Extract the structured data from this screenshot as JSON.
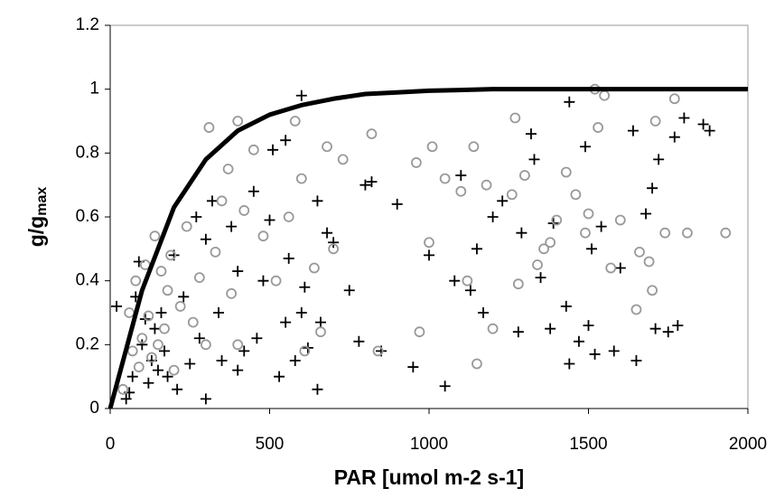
{
  "chart_data": {
    "type": "scatter",
    "xlabel": "PAR [umol m-2 s-1]",
    "ylabel": "g/g",
    "ylabel_sub": "max",
    "xlim": [
      0,
      2000
    ],
    "xticks": [
      0,
      500,
      1000,
      1500,
      2000
    ],
    "ylim": [
      0,
      1.2
    ],
    "yticks": [
      0,
      0.2,
      0.4,
      0.6,
      0.8,
      1,
      1.2
    ],
    "series": [
      {
        "marker": "cross",
        "color": "#000000",
        "x": [
          20,
          50,
          60,
          70,
          80,
          90,
          100,
          110,
          120,
          130,
          140,
          150,
          160,
          170,
          180,
          200,
          210,
          230,
          250,
          270,
          280,
          300,
          300,
          320,
          340,
          350,
          380,
          400,
          400,
          420,
          450,
          460,
          480,
          500,
          510,
          530,
          550,
          550,
          560,
          580,
          600,
          600,
          610,
          620,
          650,
          650,
          660,
          680,
          700,
          750,
          780,
          800,
          820,
          850,
          900,
          950,
          1000,
          1050,
          1080,
          1100,
          1130,
          1150,
          1170,
          1200,
          1230,
          1280,
          1290,
          1320,
          1330,
          1350,
          1380,
          1390,
          1430,
          1440,
          1440,
          1470,
          1490,
          1500,
          1510,
          1520,
          1540,
          1580,
          1600,
          1640,
          1650,
          1680,
          1700,
          1710,
          1720,
          1750,
          1770,
          1780,
          1800,
          1860,
          1880
        ],
        "values": [
          0.32,
          0.03,
          0.05,
          0.1,
          0.35,
          0.46,
          0.2,
          0.28,
          0.08,
          0.15,
          0.25,
          0.12,
          0.3,
          0.18,
          0.1,
          0.48,
          0.06,
          0.35,
          0.14,
          0.6,
          0.22,
          0.03,
          0.53,
          0.65,
          0.3,
          0.15,
          0.57,
          0.12,
          0.43,
          0.18,
          0.68,
          0.22,
          0.4,
          0.59,
          0.81,
          0.1,
          0.84,
          0.27,
          0.47,
          0.15,
          0.3,
          0.98,
          0.38,
          0.19,
          0.06,
          0.65,
          0.27,
          0.55,
          0.52,
          0.37,
          0.21,
          0.7,
          0.71,
          0.18,
          0.64,
          0.13,
          0.48,
          0.07,
          0.4,
          0.73,
          0.37,
          0.5,
          0.3,
          0.6,
          0.65,
          0.24,
          0.55,
          0.86,
          0.78,
          0.41,
          0.25,
          0.58,
          0.32,
          0.14,
          0.96,
          0.21,
          0.82,
          0.26,
          0.5,
          0.17,
          0.57,
          0.18,
          0.44,
          0.87,
          0.15,
          0.61,
          0.69,
          0.25,
          0.78,
          0.24,
          0.85,
          0.26,
          0.91,
          0.89,
          0.87
        ]
      },
      {
        "marker": "circle",
        "color": "#999999",
        "x": [
          40,
          60,
          70,
          80,
          90,
          100,
          110,
          120,
          130,
          140,
          150,
          160,
          170,
          180,
          190,
          200,
          220,
          240,
          260,
          280,
          300,
          310,
          330,
          350,
          370,
          380,
          400,
          400,
          420,
          450,
          480,
          520,
          560,
          580,
          600,
          610,
          640,
          660,
          680,
          700,
          730,
          820,
          840,
          960,
          970,
          1000,
          1010,
          1050,
          1100,
          1120,
          1140,
          1150,
          1180,
          1200,
          1260,
          1270,
          1280,
          1300,
          1340,
          1360,
          1380,
          1400,
          1430,
          1460,
          1490,
          1500,
          1520,
          1530,
          1550,
          1570,
          1600,
          1650,
          1660,
          1690,
          1700,
          1710,
          1740,
          1770,
          1810,
          1930
        ],
        "values": [
          0.06,
          0.3,
          0.18,
          0.4,
          0.13,
          0.22,
          0.45,
          0.29,
          0.16,
          0.54,
          0.2,
          0.43,
          0.25,
          0.37,
          0.48,
          0.12,
          0.32,
          0.57,
          0.27,
          0.41,
          0.2,
          0.88,
          0.49,
          0.65,
          0.75,
          0.36,
          0.2,
          0.9,
          0.62,
          0.81,
          0.54,
          0.4,
          0.6,
          0.9,
          0.72,
          0.18,
          0.44,
          0.24,
          0.82,
          0.5,
          0.78,
          0.86,
          0.18,
          0.77,
          0.24,
          0.52,
          0.82,
          0.72,
          0.68,
          0.4,
          0.82,
          0.14,
          0.7,
          0.25,
          0.67,
          0.91,
          0.39,
          0.73,
          0.45,
          0.5,
          0.52,
          0.59,
          0.74,
          0.67,
          0.55,
          0.61,
          1,
          0.88,
          0.98,
          0.44,
          0.59,
          0.31,
          0.49,
          0.46,
          0.37,
          0.9,
          0.55,
          0.97,
          0.55,
          0.55
        ]
      },
      {
        "marker": "line",
        "color": "#000000",
        "x": [
          0,
          100,
          200,
          300,
          400,
          500,
          600,
          700,
          800,
          900,
          1000,
          1200,
          1500,
          2000
        ],
        "values": [
          0,
          0.37,
          0.63,
          0.78,
          0.87,
          0.92,
          0.95,
          0.97,
          0.985,
          0.99,
          0.995,
          1,
          1,
          1
        ]
      }
    ]
  }
}
